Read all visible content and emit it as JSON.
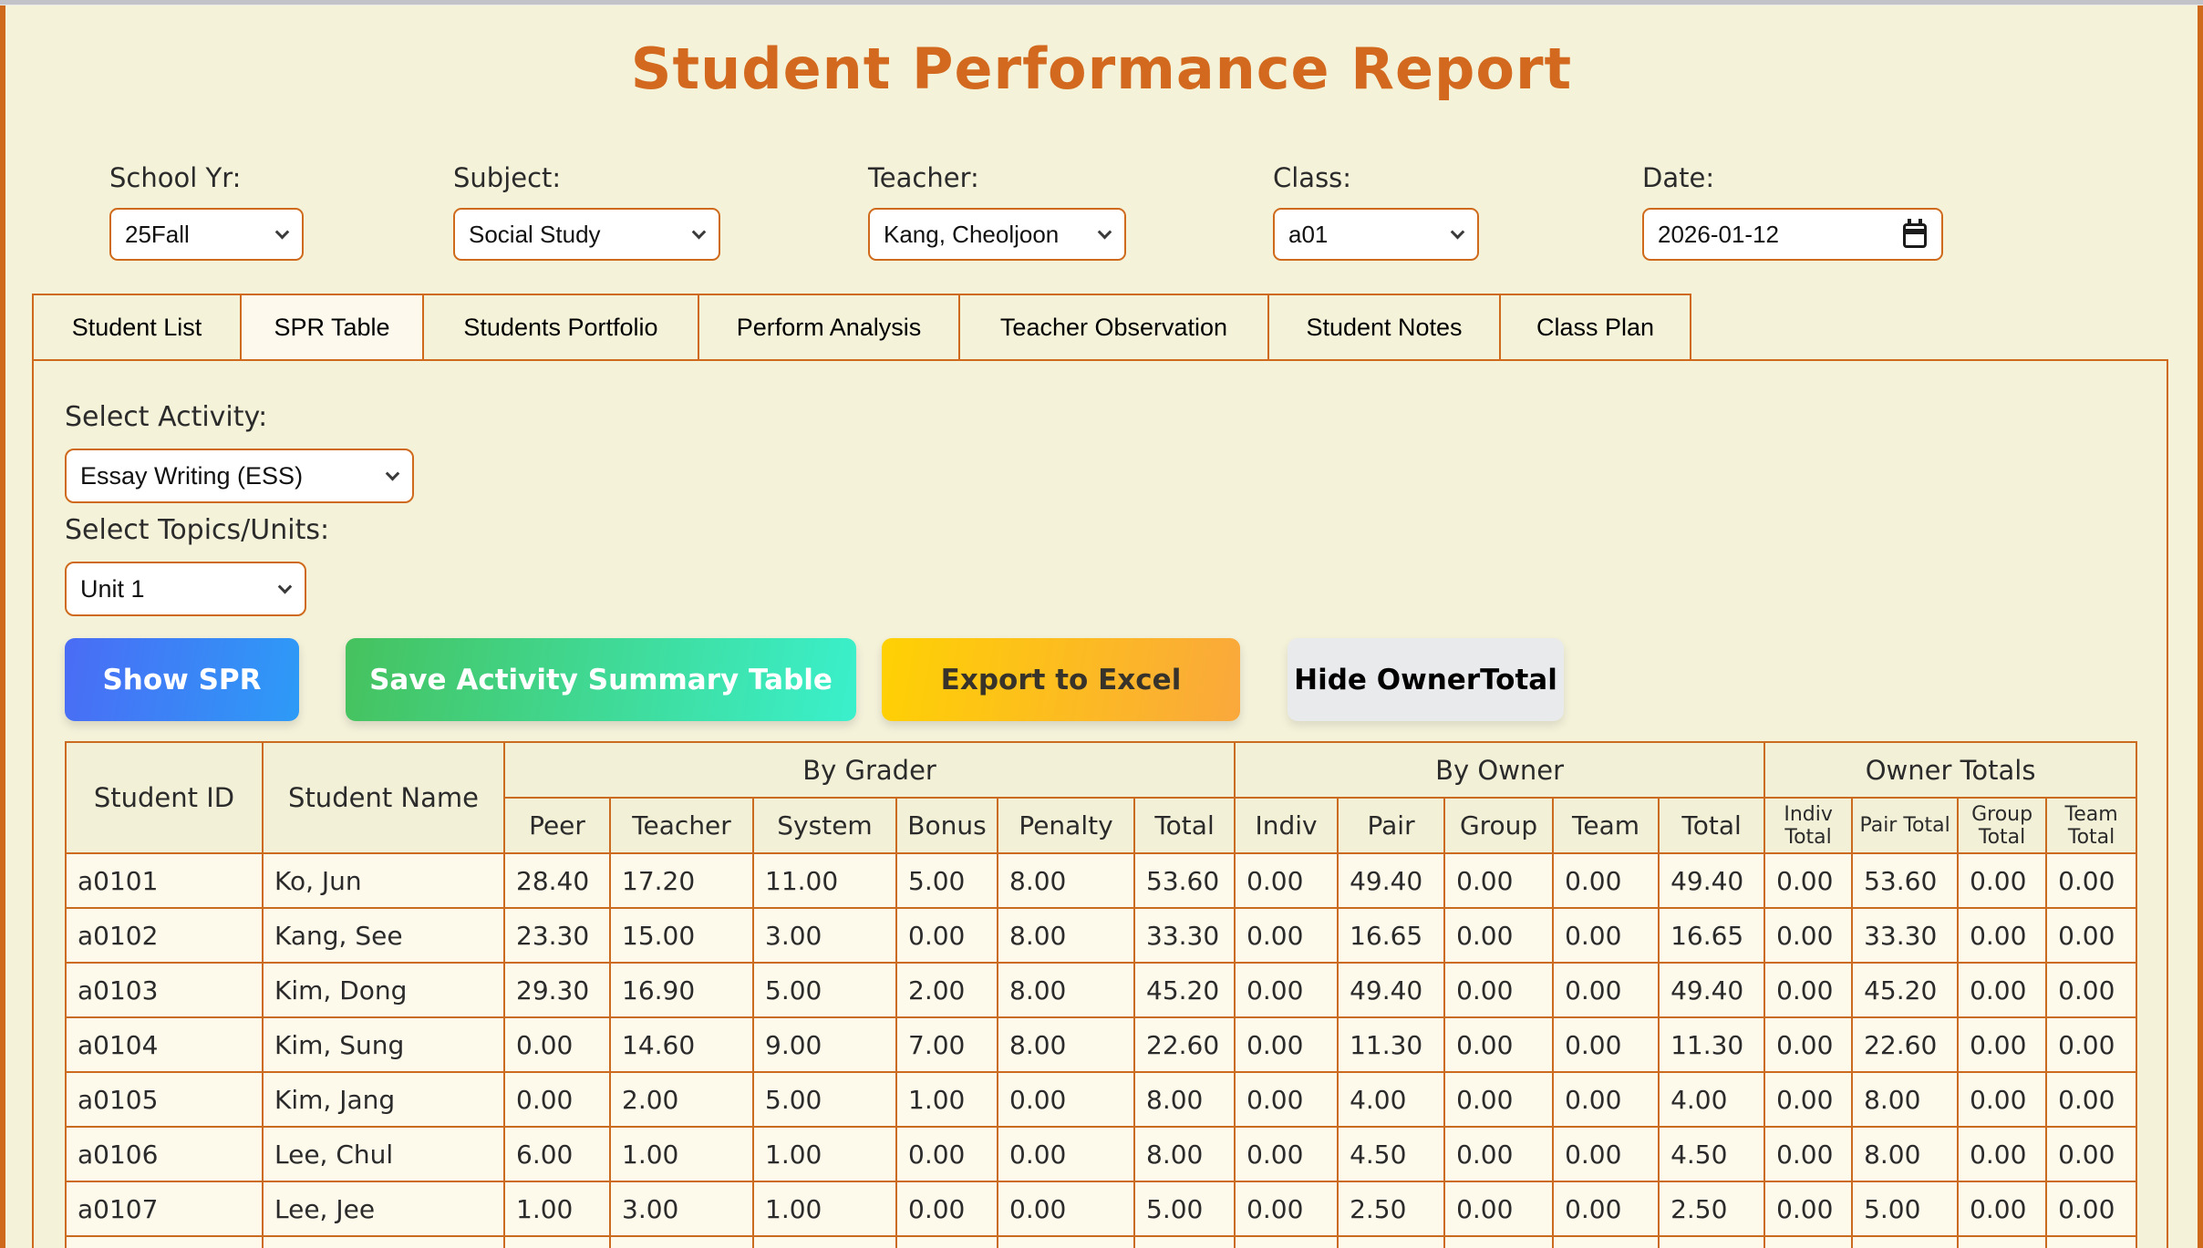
{
  "page": {
    "title": "Student Performance Report",
    "accent_color": "#d2691e",
    "background_color": "#f4f2d9",
    "border_color": "#cf6a1c"
  },
  "filters": {
    "school_yr": {
      "label": "School Yr:",
      "value": "25Fall"
    },
    "subject": {
      "label": "Subject:",
      "value": "Social Study"
    },
    "teacher": {
      "label": "Teacher:",
      "value": "Kang, Cheoljoon"
    },
    "class": {
      "label": "Class:",
      "value": "a01"
    },
    "date": {
      "label": "Date:",
      "value": "2026-01-12"
    }
  },
  "tabs": [
    {
      "label": "Student List",
      "active": false
    },
    {
      "label": "SPR Table",
      "active": true
    },
    {
      "label": "Students Portfolio",
      "active": false
    },
    {
      "label": "Perform Analysis",
      "active": false
    },
    {
      "label": "Teacher Observation",
      "active": false
    },
    {
      "label": "Student Notes",
      "active": false
    },
    {
      "label": "Class Plan",
      "active": false
    }
  ],
  "activity": {
    "label": "Select Activity:",
    "value": "Essay Writing (ESS)"
  },
  "topics": {
    "label": "Select Topics/Units:",
    "value": "Unit 1"
  },
  "buttons": {
    "show_spr": {
      "label": "Show SPR",
      "gradient": [
        "#4a6cf5",
        "#2d9bf7"
      ]
    },
    "save_summary": {
      "label": "Save Activity Summary Table",
      "gradient": [
        "#46c25e",
        "#3af0cc"
      ]
    },
    "export_excel": {
      "label": "Export to Excel",
      "gradient": [
        "#ffd103",
        "#faa83c"
      ]
    },
    "hide_owner_total": {
      "label": "Hide OwnerTotal",
      "color": "#e9eaec"
    }
  },
  "table": {
    "row_headers": [
      "Student ID",
      "Student Name"
    ],
    "col_groups": [
      {
        "label": "By Grader",
        "span": 6
      },
      {
        "label": "By Owner",
        "span": 5
      },
      {
        "label": "Owner Totals",
        "span": 4
      }
    ],
    "sub_headers": [
      "Peer",
      "Teacher",
      "System",
      "Bonus",
      "Penalty",
      "Total",
      "Indiv",
      "Pair",
      "Group",
      "Team",
      "Total",
      "Indiv Total",
      "Pair Total",
      "Group Total",
      "Team Total"
    ],
    "rows": [
      {
        "id": "a0101",
        "name": "Ko, Jun",
        "values": [
          "28.40",
          "17.20",
          "11.00",
          "5.00",
          "8.00",
          "53.60",
          "0.00",
          "49.40",
          "0.00",
          "0.00",
          "49.40",
          "0.00",
          "53.60",
          "0.00",
          "0.00"
        ]
      },
      {
        "id": "a0102",
        "name": "Kang, See",
        "values": [
          "23.30",
          "15.00",
          "3.00",
          "0.00",
          "8.00",
          "33.30",
          "0.00",
          "16.65",
          "0.00",
          "0.00",
          "16.65",
          "0.00",
          "33.30",
          "0.00",
          "0.00"
        ]
      },
      {
        "id": "a0103",
        "name": "Kim, Dong",
        "values": [
          "29.30",
          "16.90",
          "5.00",
          "2.00",
          "8.00",
          "45.20",
          "0.00",
          "49.40",
          "0.00",
          "0.00",
          "49.40",
          "0.00",
          "45.20",
          "0.00",
          "0.00"
        ]
      },
      {
        "id": "a0104",
        "name": "Kim, Sung",
        "values": [
          "0.00",
          "14.60",
          "9.00",
          "7.00",
          "8.00",
          "22.60",
          "0.00",
          "11.30",
          "0.00",
          "0.00",
          "11.30",
          "0.00",
          "22.60",
          "0.00",
          "0.00"
        ]
      },
      {
        "id": "a0105",
        "name": "Kim, Jang",
        "values": [
          "0.00",
          "2.00",
          "5.00",
          "1.00",
          "0.00",
          "8.00",
          "0.00",
          "4.00",
          "0.00",
          "0.00",
          "4.00",
          "0.00",
          "8.00",
          "0.00",
          "0.00"
        ]
      },
      {
        "id": "a0106",
        "name": "Lee, Chul",
        "values": [
          "6.00",
          "1.00",
          "1.00",
          "0.00",
          "0.00",
          "8.00",
          "0.00",
          "4.50",
          "0.00",
          "0.00",
          "4.50",
          "0.00",
          "8.00",
          "0.00",
          "0.00"
        ]
      },
      {
        "id": "a0107",
        "name": "Lee, Jee",
        "values": [
          "1.00",
          "3.00",
          "1.00",
          "0.00",
          "0.00",
          "5.00",
          "0.00",
          "2.50",
          "0.00",
          "0.00",
          "2.50",
          "0.00",
          "5.00",
          "0.00",
          "0.00"
        ]
      }
    ],
    "partial_next_row_visible": true
  }
}
